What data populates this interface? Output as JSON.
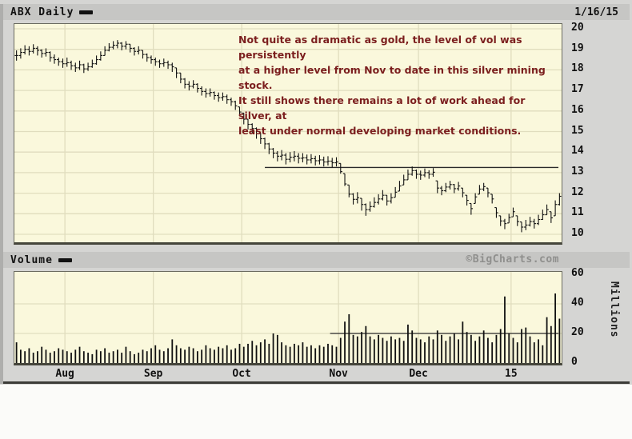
{
  "header": {
    "symbol_label": "ABX Daily",
    "date": "1/16/15"
  },
  "volume_header": {
    "label": "Volume",
    "watermark": "©BigCharts.com"
  },
  "annotation": {
    "lines": [
      "Not quite as dramatic as gold, the level of vol was persistently",
      "at a higher level from Nov to date in this silver mining stock.",
      "It still shows there remains a lot of work ahead for silver, at",
      "least under normal developing market conditions."
    ]
  },
  "colors": {
    "panel_bg": "#d5d5d3",
    "header_bg": "#c6c6c4",
    "chart_bg": "#faf8dc",
    "grid": "#e0ddbe",
    "bar": "#111111",
    "annotation_text": "#7b1e1e",
    "watermark_text": "#8f8f8d",
    "ref_line": "#2a2a2a"
  },
  "chart_data": {
    "type": "ohlc+volume-bar",
    "title": "ABX Daily",
    "price_axis": {
      "ticks": [
        20,
        19,
        18,
        17,
        16,
        15,
        14,
        13,
        12,
        11,
        10
      ],
      "ylim": [
        9.6,
        20.2
      ]
    },
    "volume_axis": {
      "ticks": [
        60,
        40,
        20,
        0
      ],
      "ylim": [
        0,
        60
      ],
      "unit_label": "Millions"
    },
    "month_ticks": {
      "indices": [
        12,
        33,
        54,
        77,
        96,
        118
      ],
      "labels": [
        "Aug",
        "Sep",
        "Oct",
        "Nov",
        "Dec",
        "15"
      ]
    },
    "ref_lines": {
      "price": {
        "value": 13.25,
        "start_index": 59
      },
      "volume": {
        "value": 20,
        "start_index": 75
      }
    },
    "bars": [
      [
        18.95,
        18.45,
        18.7
      ],
      [
        19.05,
        18.55,
        18.85
      ],
      [
        19.2,
        18.75,
        19.0
      ],
      [
        19.15,
        18.7,
        18.9
      ],
      [
        19.25,
        18.8,
        19.05
      ],
      [
        19.15,
        18.7,
        18.95
      ],
      [
        19.0,
        18.6,
        18.8
      ],
      [
        19.05,
        18.65,
        18.85
      ],
      [
        18.9,
        18.4,
        18.6
      ],
      [
        18.75,
        18.3,
        18.5
      ],
      [
        18.6,
        18.2,
        18.4
      ],
      [
        18.55,
        18.1,
        18.3
      ],
      [
        18.6,
        18.15,
        18.35
      ],
      [
        18.45,
        18.0,
        18.2
      ],
      [
        18.35,
        17.9,
        18.1
      ],
      [
        18.45,
        18.0,
        18.25
      ],
      [
        18.3,
        17.85,
        18.05
      ],
      [
        18.35,
        17.95,
        18.15
      ],
      [
        18.5,
        18.1,
        18.3
      ],
      [
        18.7,
        18.25,
        18.5
      ],
      [
        18.9,
        18.45,
        18.7
      ],
      [
        19.15,
        18.7,
        18.95
      ],
      [
        19.3,
        18.9,
        19.1
      ],
      [
        19.4,
        19.0,
        19.2
      ],
      [
        19.45,
        19.05,
        19.3
      ],
      [
        19.35,
        18.95,
        19.15
      ],
      [
        19.4,
        19.0,
        19.25
      ],
      [
        19.25,
        18.85,
        19.05
      ],
      [
        19.1,
        18.7,
        18.9
      ],
      [
        19.15,
        18.75,
        18.95
      ],
      [
        18.95,
        18.55,
        18.75
      ],
      [
        18.8,
        18.4,
        18.6
      ],
      [
        18.7,
        18.3,
        18.5
      ],
      [
        18.6,
        18.2,
        18.4
      ],
      [
        18.5,
        18.1,
        18.3
      ],
      [
        18.55,
        18.15,
        18.35
      ],
      [
        18.45,
        18.05,
        18.25
      ],
      [
        18.35,
        17.9,
        18.15
      ],
      [
        18.1,
        17.6,
        17.85
      ],
      [
        17.85,
        17.35,
        17.55
      ],
      [
        17.6,
        17.1,
        17.3
      ],
      [
        17.45,
        17.0,
        17.2
      ],
      [
        17.5,
        17.1,
        17.3
      ],
      [
        17.35,
        16.9,
        17.1
      ],
      [
        17.2,
        16.75,
        16.95
      ],
      [
        17.1,
        16.65,
        16.85
      ],
      [
        17.1,
        16.7,
        16.9
      ],
      [
        16.95,
        16.55,
        16.75
      ],
      [
        16.9,
        16.45,
        16.65
      ],
      [
        16.9,
        16.5,
        16.7
      ],
      [
        16.8,
        16.35,
        16.55
      ],
      [
        16.65,
        16.25,
        16.45
      ],
      [
        16.5,
        16.05,
        16.25
      ],
      [
        16.2,
        15.75,
        15.95
      ],
      [
        15.9,
        15.35,
        15.6
      ],
      [
        15.6,
        15.1,
        15.35
      ],
      [
        15.4,
        14.9,
        15.15
      ],
      [
        15.2,
        14.65,
        14.9
      ],
      [
        14.95,
        14.4,
        14.65
      ],
      [
        14.7,
        14.15,
        14.4
      ],
      [
        14.45,
        13.9,
        14.15
      ],
      [
        14.2,
        13.7,
        13.95
      ],
      [
        14.05,
        13.55,
        13.8
      ],
      [
        14.1,
        13.6,
        13.85
      ],
      [
        13.95,
        13.4,
        13.65
      ],
      [
        14.0,
        13.5,
        13.75
      ],
      [
        14.05,
        13.55,
        13.8
      ],
      [
        13.95,
        13.45,
        13.7
      ],
      [
        13.95,
        13.5,
        13.72
      ],
      [
        13.88,
        13.4,
        13.62
      ],
      [
        13.9,
        13.45,
        13.68
      ],
      [
        13.82,
        13.35,
        13.58
      ],
      [
        13.85,
        13.4,
        13.62
      ],
      [
        13.78,
        13.3,
        13.52
      ],
      [
        13.8,
        13.35,
        13.56
      ],
      [
        13.72,
        13.25,
        13.48
      ],
      [
        13.75,
        13.3,
        13.52
      ],
      [
        13.45,
        12.95,
        13.05
      ],
      [
        12.95,
        12.35,
        12.45
      ],
      [
        12.4,
        11.8,
        11.95
      ],
      [
        12.0,
        11.45,
        11.7
      ],
      [
        12.05,
        11.5,
        11.78
      ],
      [
        11.75,
        11.15,
        11.45
      ],
      [
        11.5,
        10.9,
        11.2
      ],
      [
        11.6,
        11.1,
        11.35
      ],
      [
        11.8,
        11.3,
        11.55
      ],
      [
        11.95,
        11.45,
        11.72
      ],
      [
        12.15,
        11.65,
        11.9
      ],
      [
        11.9,
        11.4,
        11.62
      ],
      [
        12.0,
        11.5,
        11.78
      ],
      [
        12.3,
        11.8,
        12.05
      ],
      [
        12.6,
        12.1,
        12.35
      ],
      [
        12.9,
        12.4,
        12.65
      ],
      [
        13.15,
        12.65,
        12.92
      ],
      [
        13.3,
        12.85,
        13.1
      ],
      [
        13.15,
        12.7,
        12.92
      ],
      [
        13.1,
        12.65,
        12.88
      ],
      [
        13.2,
        12.78,
        13.0
      ],
      [
        13.12,
        12.7,
        12.92
      ],
      [
        13.22,
        12.8,
        13.02
      ],
      [
        12.6,
        12.0,
        12.25
      ],
      [
        12.35,
        11.9,
        12.12
      ],
      [
        12.5,
        12.05,
        12.3
      ],
      [
        12.6,
        12.18,
        12.42
      ],
      [
        12.45,
        12.0,
        12.22
      ],
      [
        12.55,
        12.12,
        12.35
      ],
      [
        12.25,
        11.8,
        12.02
      ],
      [
        11.9,
        11.4,
        11.65
      ],
      [
        11.5,
        10.95,
        11.25
      ],
      [
        12.0,
        11.5,
        11.82
      ],
      [
        12.4,
        11.95,
        12.2
      ],
      [
        12.5,
        12.1,
        12.32
      ],
      [
        12.25,
        11.8,
        12.02
      ],
      [
        11.95,
        11.5,
        11.72
      ],
      [
        11.3,
        10.8,
        11.05
      ],
      [
        10.9,
        10.4,
        10.65
      ],
      [
        10.75,
        10.25,
        10.52
      ],
      [
        11.0,
        10.55,
        10.82
      ],
      [
        11.3,
        10.85,
        11.1
      ],
      [
        10.9,
        10.4,
        10.62
      ],
      [
        10.6,
        10.1,
        10.35
      ],
      [
        10.7,
        10.2,
        10.45
      ],
      [
        10.85,
        10.38,
        10.62
      ],
      [
        10.75,
        10.28,
        10.52
      ],
      [
        10.95,
        10.45,
        10.72
      ],
      [
        11.2,
        10.7,
        10.95
      ],
      [
        11.45,
        10.95,
        11.2
      ],
      [
        11.1,
        10.55,
        10.8
      ],
      [
        11.65,
        10.9,
        11.45
      ],
      [
        12.0,
        11.4,
        11.85
      ]
    ],
    "volumes": [
      14,
      9,
      8,
      10,
      7,
      8,
      11,
      9,
      7,
      8,
      10,
      9,
      8,
      7,
      9,
      11,
      8,
      7,
      6,
      9,
      8,
      10,
      7,
      8,
      9,
      7,
      11,
      8,
      6,
      7,
      9,
      8,
      10,
      12,
      9,
      8,
      10,
      16,
      12,
      10,
      9,
      11,
      10,
      8,
      9,
      12,
      10,
      9,
      11,
      10,
      12,
      9,
      10,
      13,
      11,
      13,
      15,
      12,
      14,
      16,
      13,
      20,
      19,
      14,
      12,
      11,
      13,
      12,
      14,
      11,
      12,
      10,
      12,
      11,
      13,
      12,
      11,
      17,
      28,
      33,
      19,
      18,
      21,
      25,
      18,
      16,
      19,
      17,
      15,
      18,
      16,
      17,
      15,
      26,
      22,
      17,
      16,
      14,
      18,
      16,
      22,
      19,
      15,
      18,
      20,
      16,
      28,
      21,
      19,
      15,
      18,
      22,
      17,
      14,
      19,
      23,
      45,
      20,
      17,
      14,
      23,
      24,
      18,
      14,
      16,
      12,
      31,
      25,
      47,
      30
    ]
  }
}
